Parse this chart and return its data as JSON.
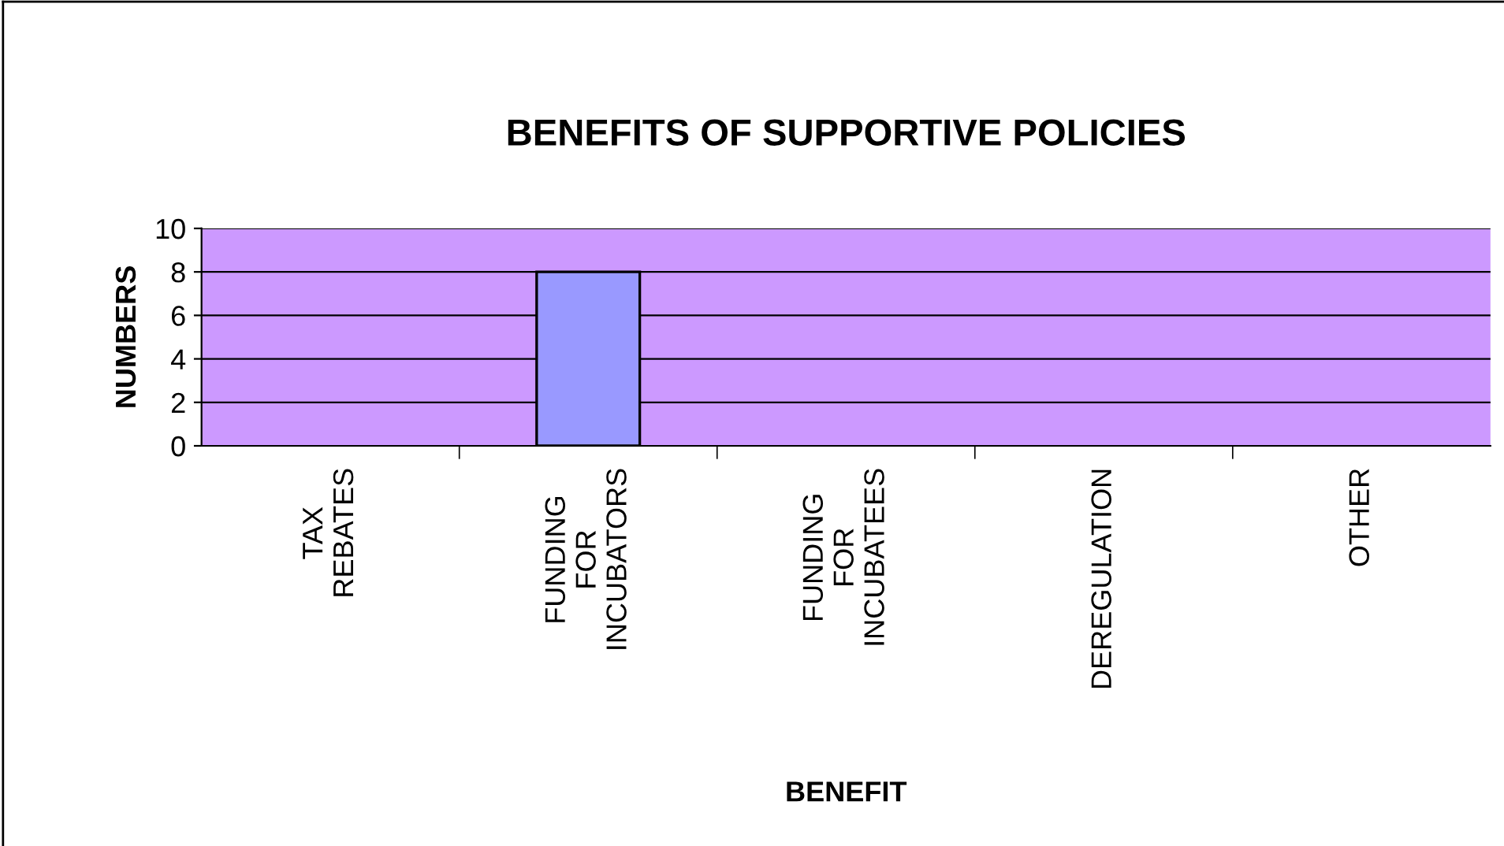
{
  "chart_data": {
    "type": "bar",
    "title": "BENEFITS OF SUPPORTIVE POLICIES",
    "xlabel": "BENEFIT",
    "ylabel": "NUMBERS",
    "categories": [
      "TAX REBATES",
      "FUNDING FOR INCUBATORS",
      "FUNDING FOR INCUBATEES",
      "DEREGULATION",
      "OTHER"
    ],
    "values": [
      0,
      8,
      0,
      0,
      0
    ],
    "color": "#9999ff",
    "ylim": [
      0,
      10
    ],
    "yticks": [
      0,
      2,
      4,
      6,
      8,
      10
    ],
    "grid": "y",
    "legend": false
  }
}
